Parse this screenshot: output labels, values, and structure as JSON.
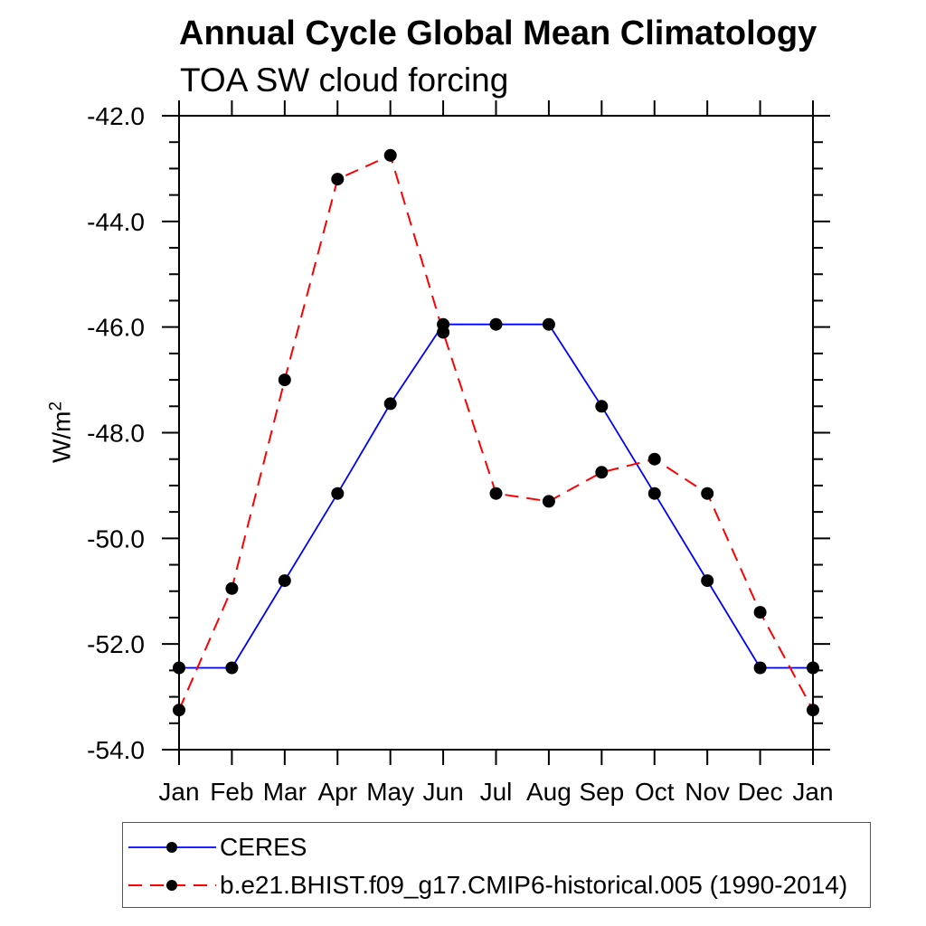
{
  "chart_data": {
    "type": "line",
    "title": "Annual Cycle Global Mean Climatology",
    "subtitle": "TOA SW cloud forcing",
    "ylabel": "W/m",
    "ylabel_exponent": "2",
    "categories": [
      "Jan",
      "Feb",
      "Mar",
      "Apr",
      "May",
      "Jun",
      "Jul",
      "Aug",
      "Sep",
      "Oct",
      "Nov",
      "Dec",
      "Jan"
    ],
    "ylim": [
      -54.0,
      -42.0
    ],
    "ytick_major_interval": 2.0,
    "ytick_minor_interval": 0.5,
    "ytick_labels": [
      "-42.0",
      "-44.0",
      "-46.0",
      "-48.0",
      "-50.0",
      "-52.0",
      "-54.0"
    ],
    "grid": false,
    "legend_position": "bottom-left-box",
    "marker": {
      "shape": "circle",
      "color": "#000000"
    },
    "axis_color": "#000000",
    "series": [
      {
        "name": "CERES",
        "color": "#0000ff",
        "line_style": "solid",
        "values": [
          -52.45,
          -52.45,
          -50.8,
          -49.15,
          -47.45,
          -45.95,
          -45.95,
          -45.95,
          -47.5,
          -49.15,
          -50.8,
          -52.45,
          -52.45
        ]
      },
      {
        "name": "b.e21.BHIST.f09_g17.CMIP6-historical.005 (1990-2014)",
        "color": "#ff0000",
        "line_style": "dashed",
        "values": [
          -53.25,
          -50.95,
          -47.0,
          -43.2,
          -42.75,
          -46.1,
          -49.15,
          -49.3,
          -48.75,
          -48.5,
          -49.15,
          -51.4,
          -53.25
        ]
      }
    ]
  }
}
